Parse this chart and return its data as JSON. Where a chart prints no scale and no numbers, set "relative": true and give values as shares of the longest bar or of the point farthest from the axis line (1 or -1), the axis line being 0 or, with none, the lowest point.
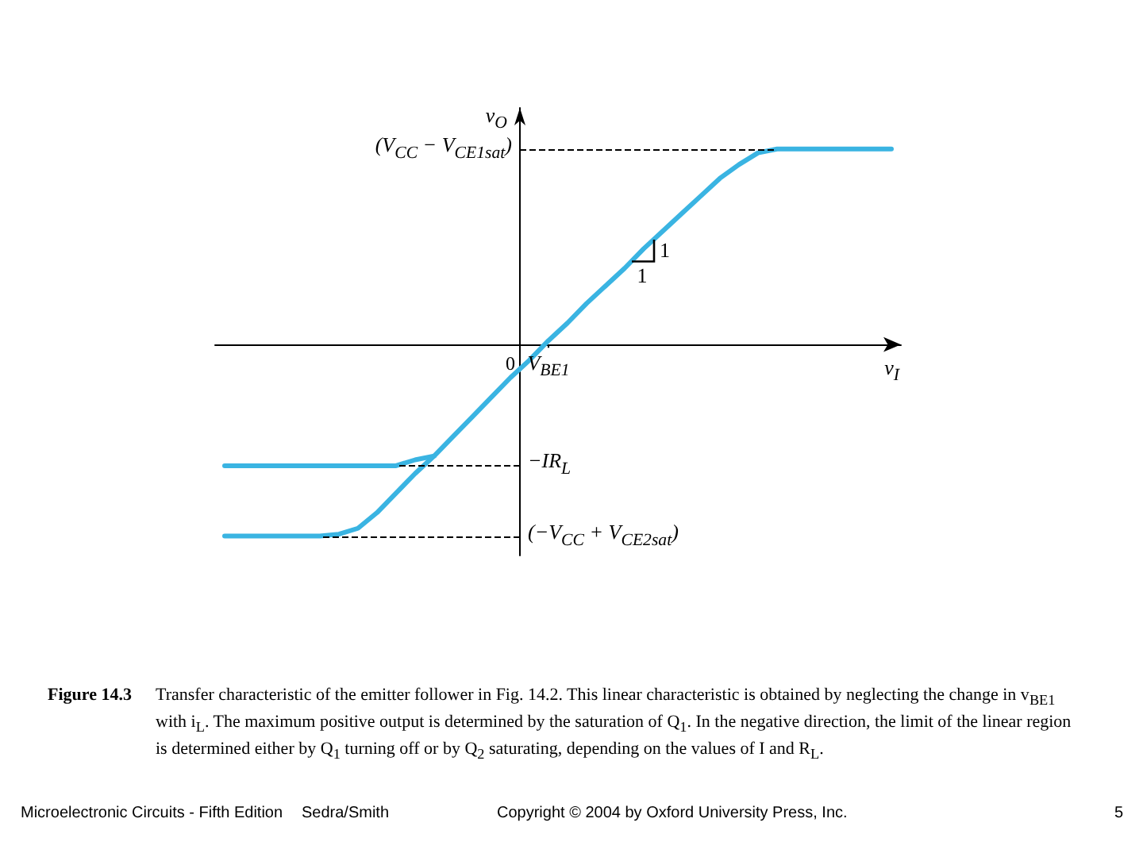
{
  "chart_data": {
    "type": "line",
    "title": "Figure 14.3",
    "subtitle": "Transfer characteristic of the emitter follower in Fig. 14.2. This linear characteristic is obtained by neglecting the change in v$_{BE1}$ with i$_{L}$. The maximum positive output is determined by the saturation of Q$_{1}$. In the negative direction, the limit of the linear region is determined either by Q$_{1}$ turning off or by Q$_{2}$ saturating, depending on the values of I and R$_{L}$.",
    "xlabel": "v$_{I}$",
    "ylabel": "v$_{O}$",
    "relative": true,
    "marker": "none",
    "line_style": "solid",
    "categories": [
      null,
      null,
      null,
      null,
      null,
      null,
      null,
      null,
      null,
      null,
      null,
      null,
      null,
      null,
      null,
      "0",
      null,
      "V$_{BE1}$",
      null,
      null,
      null,
      null,
      null,
      null,
      null,
      null,
      null,
      null,
      null,
      null,
      null,
      null,
      null,
      null,
      null,
      null
    ],
    "series": [
      {
        "color": "#3ab4e2",
        "values": [
          -0.98,
          -0.98,
          -0.98,
          -0.98,
          -0.98,
          -0.98,
          -0.97,
          -0.94,
          -0.86,
          -0.76,
          -0.66,
          -0.57,
          -0.47,
          -0.37,
          -0.27,
          -0.17,
          -0.08,
          0.02,
          0.11,
          0.21,
          0.3,
          0.39,
          0.49,
          0.58,
          0.67,
          0.76,
          0.85,
          0.92,
          0.98,
          1,
          1,
          1,
          1,
          1,
          1,
          1
        ]
      },
      {
        "color": "#3ab4e2",
        "values": [
          -0.62,
          -0.62,
          -0.62,
          -0.62,
          -0.62,
          -0.62,
          -0.62,
          -0.62,
          -0.62,
          -0.62,
          -0.59,
          -0.57,
          null,
          null,
          null,
          null,
          null,
          null,
          null,
          null,
          null,
          null,
          null,
          null,
          null,
          null,
          null,
          null,
          null,
          null,
          null,
          null,
          null,
          null,
          null,
          null
        ]
      }
    ],
    "ref_lines": [
      {
        "axis": "y",
        "value": 1,
        "label": "(V$_{CC}$ − V$_{CE1sat}$)",
        "color": "#000000",
        "line_style": "dashed"
      },
      {
        "axis": "y",
        "value": -0.62,
        "label": "−IR$_{L}$",
        "color": "#000000",
        "line_style": "dashed"
      },
      {
        "axis": "y",
        "value": -0.98,
        "label": "(−V$_{CC}$ + V$_{CE2sat}$)",
        "color": "#000000",
        "line_style": "dashed"
      }
    ],
    "annotations": [
      "1",
      "1",
      "Microelectronic Circuits - Fifth Edition",
      "Sedra/Smith",
      "Copyright © 2004 by Oxford University Press, Inc.",
      "5"
    ]
  }
}
